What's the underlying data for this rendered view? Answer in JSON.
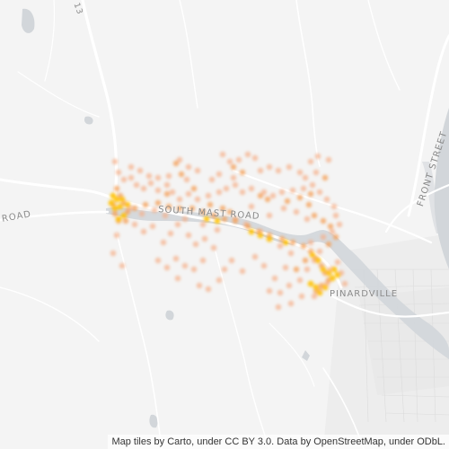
{
  "map": {
    "labels": {
      "route_number": "13",
      "road_left": "ROAD",
      "south_mast_road": "SOUTH MAST ROAD",
      "front_street": "FRONT STREET",
      "pinardville": "PINARDVILLE"
    },
    "attribution": "Map tiles by Carto, under CC BY 3.0. Data by OpenStreetMap, under ODbL.",
    "colors": {
      "land": "#f4f4f4",
      "water": "#d2d6da",
      "road": "#ffffff",
      "urban": "#e8e8e8",
      "hot_dot": "#ffc107",
      "warm_dot": "#f5a25a",
      "cool_dot": "#f6b08a"
    }
  }
}
